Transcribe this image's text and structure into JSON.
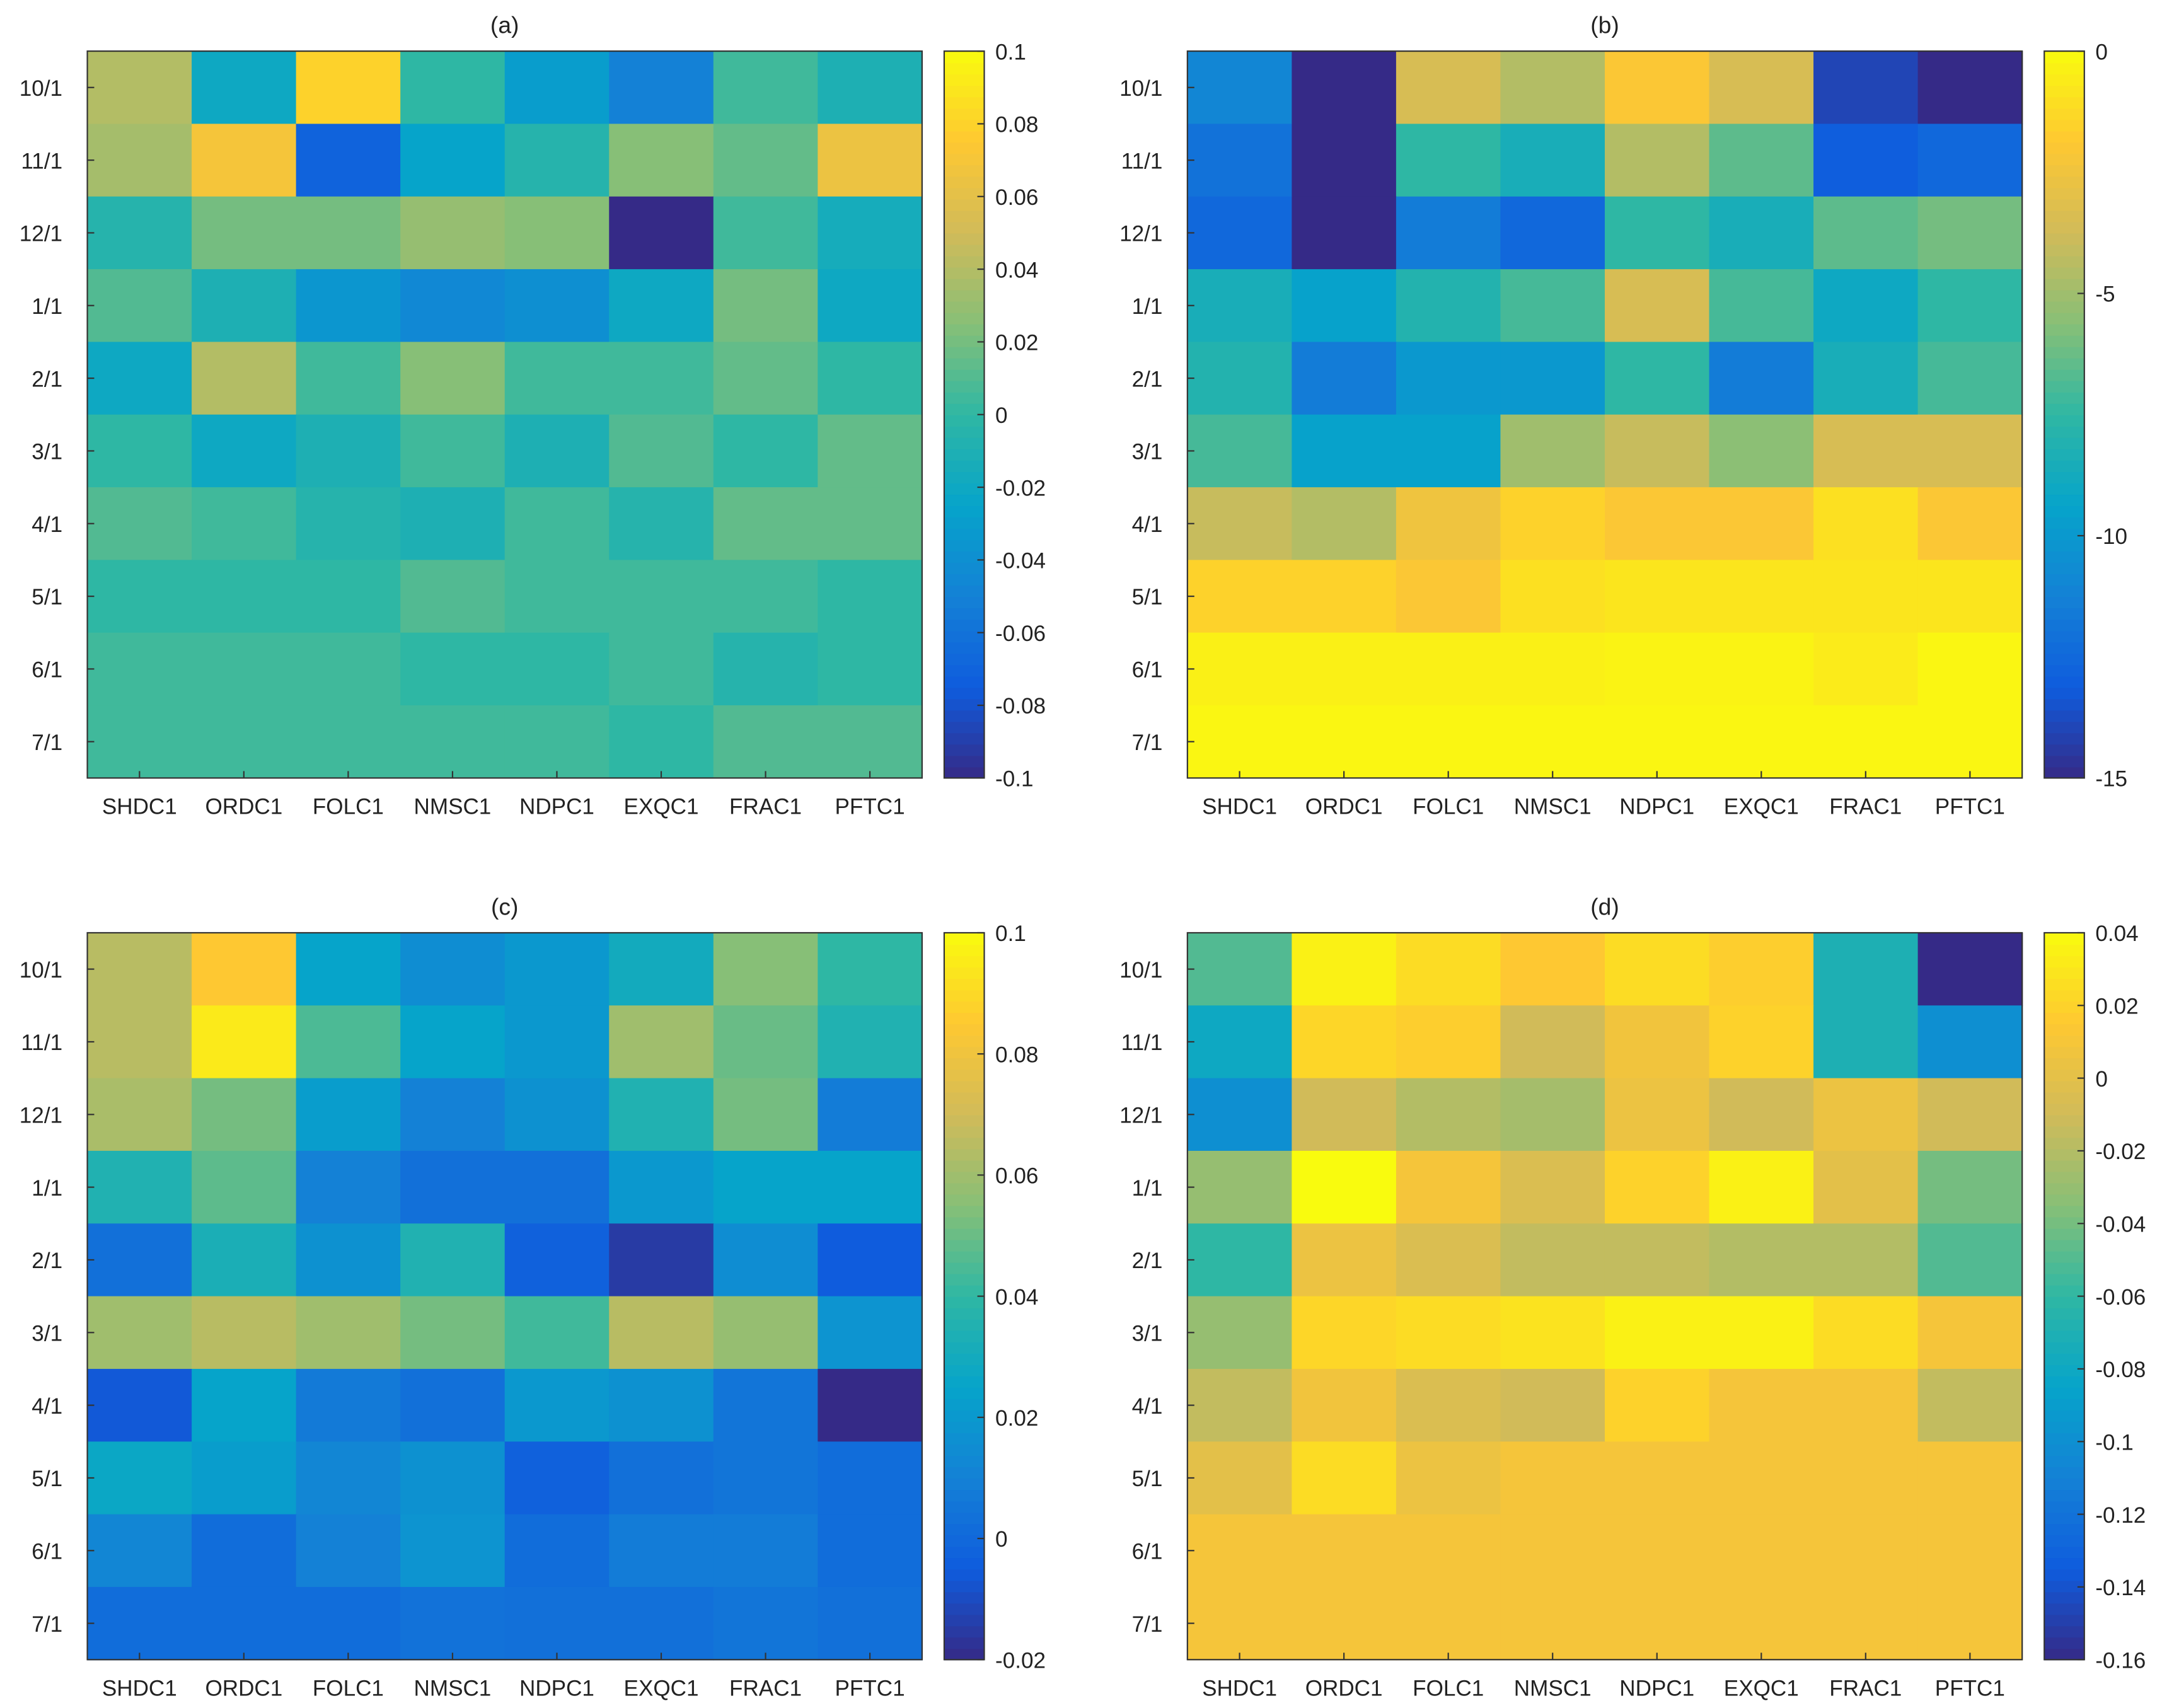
{
  "chart_data": [
    {
      "type": "heatmap",
      "title": "(a)",
      "columns": [
        "SHDC1",
        "ORDC1",
        "FOLC1",
        "NMSC1",
        "NDPC1",
        "EXQC1",
        "FRAC1",
        "PFTC1"
      ],
      "rows": [
        "10/1",
        "11/1",
        "12/1",
        "1/1",
        "2/1",
        "3/1",
        "4/1",
        "5/1",
        "6/1",
        "7/1"
      ],
      "clim": [
        -0.1,
        0.1
      ],
      "colorbar_ticks": [
        0.1,
        0.08,
        0.06,
        0.04,
        0.02,
        0,
        -0.02,
        -0.04,
        -0.06,
        -0.08,
        -0.1
      ],
      "colorbar_tick_labels": [
        "0.1",
        "0.08",
        "0.06",
        "0.04",
        "0.02",
        "0",
        "-0.02",
        "-0.04",
        "-0.06",
        "-0.08",
        "-0.1"
      ],
      "values": [
        [
          0.04,
          -0.02,
          0.08,
          0.0,
          -0.03,
          -0.05,
          0.005,
          -0.01
        ],
        [
          0.035,
          0.07,
          -0.07,
          -0.025,
          -0.005,
          0.025,
          0.015,
          0.065
        ],
        [
          -0.005,
          0.02,
          0.02,
          0.03,
          0.025,
          -0.1,
          0.005,
          -0.015
        ],
        [
          0.01,
          -0.01,
          -0.035,
          -0.045,
          -0.04,
          -0.02,
          0.02,
          -0.02
        ],
        [
          -0.02,
          0.04,
          0.005,
          0.025,
          0.005,
          0.005,
          0.015,
          0.0
        ],
        [
          0.0,
          -0.02,
          -0.01,
          0.005,
          -0.01,
          0.01,
          0.0,
          0.015
        ],
        [
          0.01,
          0.005,
          -0.005,
          -0.01,
          0.005,
          -0.005,
          0.015,
          0.015
        ],
        [
          0.0,
          0.0,
          0.0,
          0.01,
          0.005,
          0.005,
          0.005,
          0.0
        ],
        [
          0.005,
          0.005,
          0.005,
          0.0,
          0.0,
          0.005,
          -0.005,
          0.0
        ],
        [
          0.005,
          0.005,
          0.005,
          0.005,
          0.005,
          0.0,
          0.01,
          0.01
        ]
      ]
    },
    {
      "type": "heatmap",
      "title": "(b)",
      "columns": [
        "SHDC1",
        "ORDC1",
        "FOLC1",
        "NMSC1",
        "NDPC1",
        "EXQC1",
        "FRAC1",
        "PFTC1"
      ],
      "rows": [
        "10/1",
        "11/1",
        "12/1",
        "1/1",
        "2/1",
        "3/1",
        "4/1",
        "5/1",
        "6/1",
        "7/1"
      ],
      "clim": [
        -15,
        0
      ],
      "colorbar_ticks": [
        0,
        -5,
        -10,
        -15
      ],
      "colorbar_tick_labels": [
        "0",
        "-5",
        "-10",
        "-15"
      ],
      "values": [
        [
          -11,
          -15,
          -3.5,
          -4.5,
          -2,
          -3.5,
          -14,
          -15
        ],
        [
          -12,
          -15,
          -7.5,
          -8.5,
          -4.5,
          -6.5,
          -13,
          -12.5
        ],
        [
          -12.5,
          -15,
          -11.5,
          -12.5,
          -7.5,
          -8.5,
          -6.5,
          -6
        ],
        [
          -8.5,
          -9.5,
          -8,
          -7,
          -3.5,
          -7,
          -9,
          -7.5
        ],
        [
          -8,
          -11.5,
          -10,
          -10,
          -7.5,
          -11.5,
          -8.5,
          -7
        ],
        [
          -7,
          -9.5,
          -9.5,
          -5,
          -4,
          -5.5,
          -3.5,
          -3.5
        ],
        [
          -4,
          -4.5,
          -2.5,
          -1.5,
          -2,
          -2,
          -1,
          -2
        ],
        [
          -1.5,
          -1.5,
          -2,
          -1,
          -0.8,
          -0.8,
          -0.8,
          -0.8
        ],
        [
          -0.4,
          -0.4,
          -0.4,
          -0.4,
          -0.3,
          -0.3,
          -0.6,
          -0.2
        ],
        [
          -0.2,
          -0.2,
          -0.2,
          -0.2,
          -0.2,
          -0.2,
          -0.2,
          -0.2
        ]
      ]
    },
    {
      "type": "heatmap",
      "title": "(c)",
      "columns": [
        "SHDC1",
        "ORDC1",
        "FOLC1",
        "NMSC1",
        "NDPC1",
        "EXQC1",
        "FRAC1",
        "PFTC1"
      ],
      "rows": [
        "10/1",
        "11/1",
        "12/1",
        "1/1",
        "2/1",
        "3/1",
        "4/1",
        "5/1",
        "6/1",
        "7/1"
      ],
      "clim": [
        -0.02,
        0.1
      ],
      "colorbar_ticks": [
        0.1,
        0.08,
        0.06,
        0.04,
        0.02,
        0,
        -0.02
      ],
      "colorbar_tick_labels": [
        "0.1",
        "0.08",
        "0.06",
        "0.04",
        "0.02",
        "0",
        "-0.02"
      ],
      "values": [
        [
          0.065,
          0.085,
          0.025,
          0.015,
          0.02,
          0.03,
          0.055,
          0.04
        ],
        [
          0.065,
          0.095,
          0.045,
          0.025,
          0.02,
          0.06,
          0.05,
          0.035
        ],
        [
          0.062,
          0.052,
          0.022,
          0.01,
          0.017,
          0.035,
          0.052,
          0.008
        ],
        [
          0.035,
          0.048,
          0.01,
          0.003,
          0.003,
          0.02,
          0.025,
          0.025
        ],
        [
          0.003,
          0.033,
          0.017,
          0.035,
          -0.003,
          -0.015,
          0.015,
          -0.005
        ],
        [
          0.06,
          0.065,
          0.06,
          0.052,
          0.043,
          0.065,
          0.058,
          0.018
        ],
        [
          -0.006,
          0.025,
          0.007,
          0.003,
          0.02,
          0.017,
          0.005,
          -0.02
        ],
        [
          0.027,
          0.022,
          0.012,
          0.017,
          -0.003,
          0.003,
          0.005,
          0.002
        ],
        [
          0.012,
          0.002,
          0.01,
          0.018,
          0.002,
          0.008,
          0.008,
          0.002
        ],
        [
          0.002,
          0.002,
          0.002,
          0.004,
          0.003,
          0.003,
          0.005,
          0.003
        ]
      ]
    },
    {
      "type": "heatmap",
      "title": "(d)",
      "columns": [
        "SHDC1",
        "ORDC1",
        "FOLC1",
        "NMSC1",
        "NDPC1",
        "EXQC1",
        "FRAC1",
        "PFTC1"
      ],
      "rows": [
        "10/1",
        "11/1",
        "12/1",
        "1/1",
        "2/1",
        "3/1",
        "4/1",
        "5/1",
        "6/1",
        "7/1"
      ],
      "clim": [
        -0.16,
        0.04
      ],
      "colorbar_ticks": [
        0.04,
        0.02,
        0,
        -0.02,
        -0.04,
        -0.06,
        -0.08,
        -0.1,
        -0.12,
        -0.14,
        -0.16
      ],
      "colorbar_tick_labels": [
        "0.04",
        "0.02",
        "0",
        "-0.02",
        "-0.04",
        "-0.06",
        "-0.08",
        "-0.1",
        "-0.12",
        "-0.14",
        "-0.16"
      ],
      "values": [
        [
          -0.05,
          0.035,
          0.025,
          0.015,
          0.025,
          0.018,
          -0.07,
          -0.16
        ],
        [
          -0.08,
          0.022,
          0.018,
          -0.01,
          0.008,
          0.02,
          -0.07,
          -0.1
        ],
        [
          -0.1,
          -0.01,
          -0.02,
          -0.025,
          0.005,
          -0.01,
          0.005,
          -0.01
        ],
        [
          -0.03,
          0.04,
          0.01,
          -0.005,
          0.02,
          0.035,
          0.0,
          -0.04
        ],
        [
          -0.06,
          0.005,
          -0.005,
          -0.015,
          -0.015,
          -0.02,
          -0.02,
          -0.05
        ],
        [
          -0.03,
          0.022,
          0.025,
          0.028,
          0.035,
          0.035,
          0.025,
          0.01
        ],
        [
          -0.015,
          0.008,
          -0.005,
          -0.01,
          0.02,
          0.01,
          0.01,
          -0.015
        ],
        [
          0.0,
          0.025,
          0.005,
          0.01,
          0.01,
          0.01,
          0.01,
          0.01
        ],
        [
          0.01,
          0.01,
          0.01,
          0.01,
          0.01,
          0.01,
          0.01,
          0.01
        ],
        [
          0.01,
          0.01,
          0.01,
          0.01,
          0.01,
          0.01,
          0.01,
          0.01
        ]
      ]
    }
  ]
}
